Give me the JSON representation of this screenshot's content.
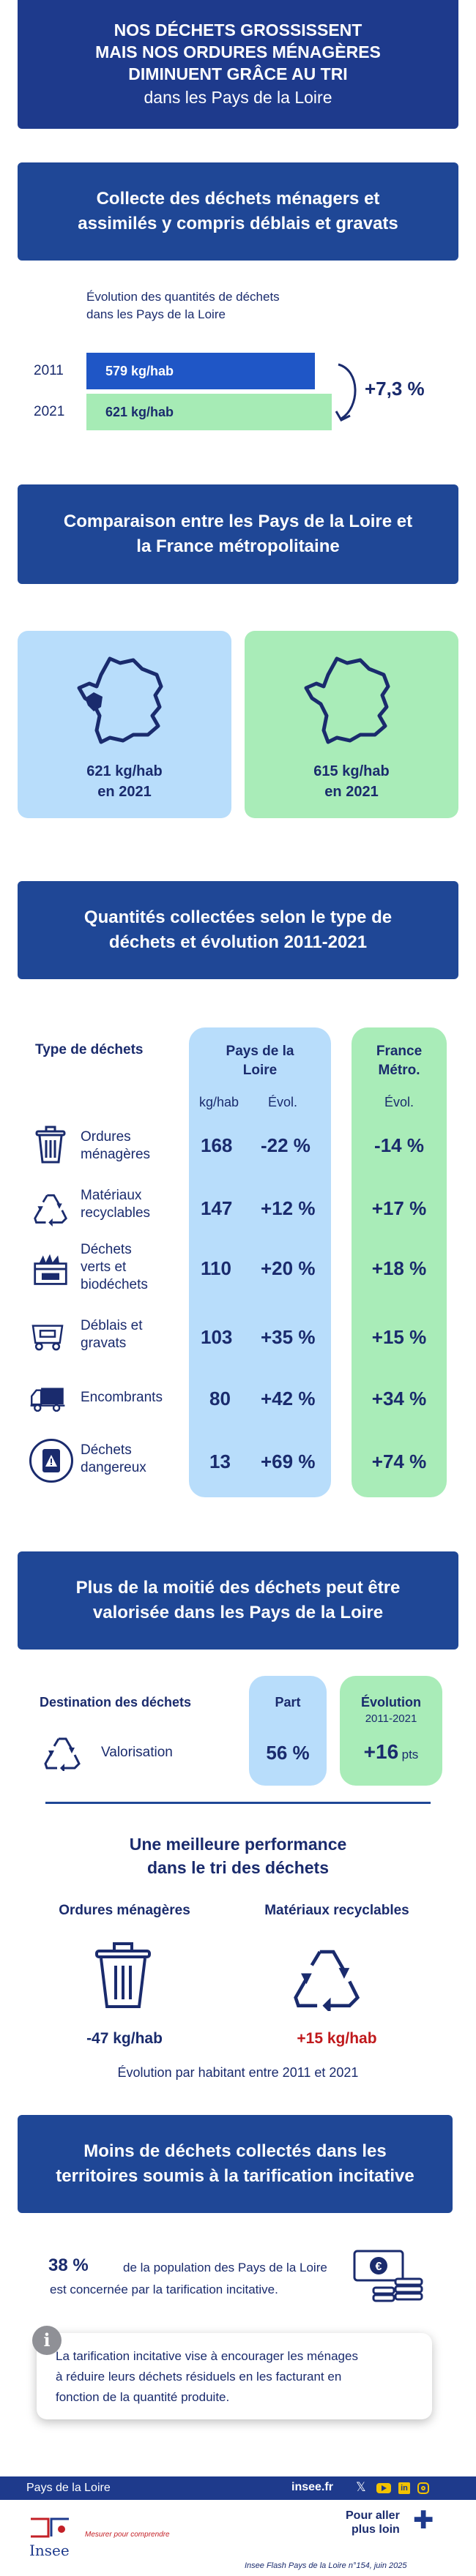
{
  "header": {
    "line1": "NOS DÉCHETS GROSSISSENT",
    "line2": "MAIS NOS ORDURES MÉNAGÈRES",
    "line3": "DIMINUENT GRÂCE AU TRI",
    "line4": "dans les Pays de la Loire"
  },
  "section_collecte": {
    "title1": "Collecte des déchets ménagers et",
    "title2": "assimilés y compris déblais et gravats",
    "chart_caption1": "Évolution des quantités de déchets",
    "chart_caption2": "dans les Pays de la Loire",
    "change": "+7,3 %"
  },
  "chart_data": {
    "type": "bar",
    "categories": [
      "2011",
      "2021"
    ],
    "values": [
      579,
      621
    ],
    "value_labels": [
      "579 kg/hab",
      "621 kg/hab"
    ],
    "colors": [
      "#1f56c6",
      "#a6ebb5"
    ],
    "label_colors": [
      "#ffffff",
      "#1a2b6d"
    ]
  },
  "section_comparaison": {
    "title1": "Comparaison entre les Pays de la Loire et",
    "title2": "la France métropolitaine",
    "left_value": "621 kg/hab",
    "left_year": "en 2021",
    "right_value": "615 kg/hab",
    "right_year": "en 2021"
  },
  "section_types": {
    "title1": "Quantités collectées selon le type de",
    "title2": "déchets et évolution 2011-2021",
    "col_type": "Type de déchets",
    "col_pdl1": "Pays de la",
    "col_pdl2": "Loire",
    "col_fr1": "France",
    "col_fr2": "Métro.",
    "sub_kghab": "kg/hab",
    "sub_evol": "Évol.",
    "sub_evol2": "Évol.",
    "rows": [
      {
        "icon": "trash-bin-icon",
        "label1": "Ordures",
        "label2": "ménagères",
        "label3": "",
        "kg": "168",
        "evol": "-22 %",
        "fr": "-14 %"
      },
      {
        "icon": "recycle-icon",
        "label1": "Matériaux",
        "label2": "recyclables",
        "label3": "",
        "kg": "147",
        "evol": "+12 %",
        "fr": "+17 %"
      },
      {
        "icon": "green-waste-icon",
        "label1": "Déchets",
        "label2": "verts et",
        "label3": "biodéchets",
        "kg": "110",
        "evol": "+20 %",
        "fr": "+18 %"
      },
      {
        "icon": "rubble-container-icon",
        "label1": "Déblais et",
        "label2": "gravats",
        "label3": "",
        "kg": "103",
        "evol": "+35 %",
        "fr": "+15 %"
      },
      {
        "icon": "truck-icon",
        "label1": "Encombrants",
        "label2": "",
        "label3": "",
        "kg": "80",
        "evol": "+42 %",
        "fr": "+34 %"
      },
      {
        "icon": "hazard-barrel-icon",
        "label1": "Déchets",
        "label2": "dangereux",
        "label3": "",
        "kg": "13",
        "evol": "+69 %",
        "fr": "+74 %"
      }
    ]
  },
  "section_valorisation": {
    "title1": "Plus de la moitié des déchets peut être",
    "title2": "valorisée dans les Pays de la Loire",
    "col_dest": "Destination des déchets",
    "col_part": "Part",
    "col_evol": "Évolution",
    "col_evol_sub": "2011-2021",
    "row_label": "Valorisation",
    "row_part": "56 %",
    "row_evol": "+16",
    "row_evol_unit": "pts"
  },
  "section_tri": {
    "title1": "Une meilleure performance",
    "title2": "dans le tri des déchets",
    "left_title": "Ordures ménagères",
    "right_title": "Matériaux recyclables",
    "left_value": "-47 kg/hab",
    "right_value": "+15 kg/hab",
    "caption": "Évolution par habitant entre 2011 et 2021",
    "colors": {
      "left": "#1a2b6d",
      "right": "#c0191c"
    }
  },
  "section_tarif": {
    "title1": "Moins de déchets collectés dans les",
    "title2": "territoires soumis à la tarification incitative",
    "stat_pct": "38 %",
    "stat_text1": "de la population des Pays de la Loire",
    "stat_text2": "est concernée par la tarification incitative.",
    "info1": "La tarification incitative vise à encourager les ménages",
    "info2": "à réduire leurs déchets résiduels en les facturant en",
    "info3": "fonction de la quantité produite.",
    "info_icon_glyph": "i"
  },
  "footer": {
    "region": "Pays de la Loire",
    "site": "insee.fr",
    "social_x": "𝕏",
    "social_in": "in",
    "logo_text": "Insee",
    "tagline": "Mesurer pour comprendre",
    "more1": "Pour aller",
    "more2": "plus loin",
    "plus": "✚",
    "source": "Insee Flash Pays de la Loire n°154, juin 2025"
  }
}
